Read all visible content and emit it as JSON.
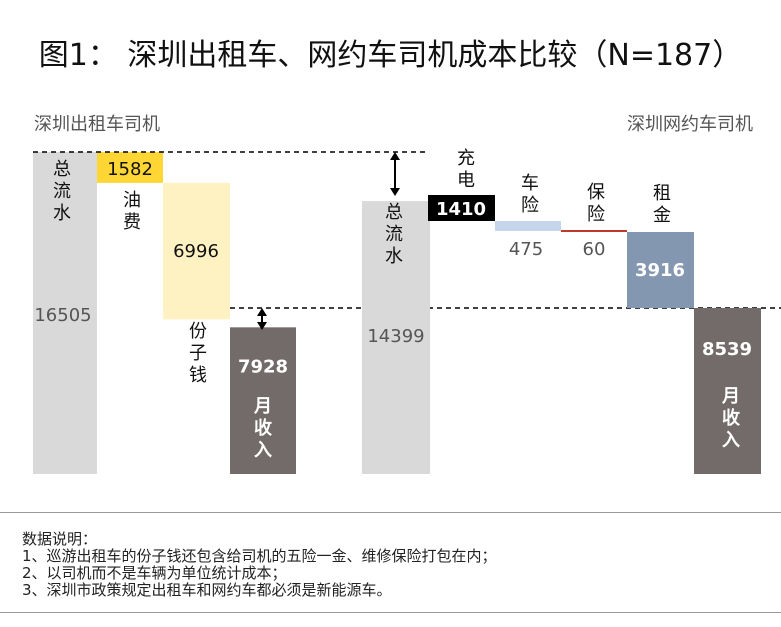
{
  "title": "图1： 深圳出租车、网约车司机成本比较（N=187）",
  "chart_data": {
    "type": "waterfall",
    "title": "图1： 深圳出租车、网约车司机成本比较（N=187）",
    "groups": [
      {
        "name": "深圳出租车司机",
        "steps": [
          {
            "label": "总流水",
            "value": 16505,
            "kind": "total",
            "color": "#d9d9d9"
          },
          {
            "label": "油费",
            "value": 1582,
            "kind": "cost",
            "color": "#ffd633"
          },
          {
            "label": "份子钱",
            "value": 6996,
            "kind": "cost",
            "color": "#fff2c2"
          },
          {
            "label": "月收入",
            "value": 7928,
            "kind": "result",
            "color": "#726b69"
          }
        ]
      },
      {
        "name": "深圳网约车司机",
        "steps": [
          {
            "label": "总流水",
            "value": 14399,
            "kind": "total",
            "color": "#d9d9d9"
          },
          {
            "label": "充电",
            "value": 1410,
            "kind": "cost",
            "color": "#000000"
          },
          {
            "label": "车险",
            "value": 475,
            "kind": "cost",
            "color": "#c6d6ea"
          },
          {
            "label": "保险",
            "value": 60,
            "kind": "cost",
            "color": "#c0392b"
          },
          {
            "label": "租金",
            "value": 3916,
            "kind": "cost",
            "color": "#8497b0"
          },
          {
            "label": "月收入",
            "value": 8539,
            "kind": "result",
            "color": "#726b69"
          }
        ]
      }
    ],
    "ylim": [
      0,
      16505
    ]
  },
  "notes": {
    "heading": "数据说明：",
    "lines": [
      "1、巡游出租车的份子钱还包含给司机的五险一金、维修保险打包在内；",
      "2、以司机而不是车辆为单位统计成本；",
      "3、深圳市政策规定出租车和网约车都必须是新能源车。"
    ]
  }
}
